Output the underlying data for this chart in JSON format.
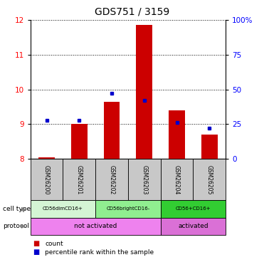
{
  "title": "GDS751 / 3159",
  "samples": [
    "GSM26200",
    "GSM26201",
    "GSM26202",
    "GSM26203",
    "GSM26204",
    "GSM26205"
  ],
  "red_values": [
    8.05,
    9.0,
    9.65,
    11.85,
    9.4,
    8.7
  ],
  "blue_values_pct": [
    28,
    28,
    47,
    42,
    26,
    22
  ],
  "ylim_left": [
    8,
    12
  ],
  "ylim_right": [
    0,
    100
  ],
  "yticks_left": [
    8,
    9,
    10,
    11,
    12
  ],
  "yticks_right": [
    0,
    25,
    50,
    75,
    100
  ],
  "ytick_labels_right": [
    "0",
    "25",
    "50",
    "75",
    "100%"
  ],
  "cell_types": [
    {
      "label": "CD56dimCD16+",
      "span": [
        0,
        2
      ],
      "color": "#d4f5d4"
    },
    {
      "label": "CD56brightCD16-",
      "span": [
        2,
        4
      ],
      "color": "#90ee90"
    },
    {
      "label": "CD56+CD16+",
      "span": [
        4,
        6
      ],
      "color": "#32cd32"
    }
  ],
  "protocols": [
    {
      "label": "not activated",
      "span": [
        0,
        4
      ],
      "color": "#ee82ee"
    },
    {
      "label": "activated",
      "span": [
        4,
        6
      ],
      "color": "#da70d6"
    }
  ],
  "legend_count_color": "#cc0000",
  "legend_pct_color": "#0000cc",
  "bar_color": "#cc0000",
  "dot_color": "#0000cc",
  "sample_box_color": "#c8c8c8",
  "title_fontsize": 10,
  "tick_fontsize": 7.5
}
